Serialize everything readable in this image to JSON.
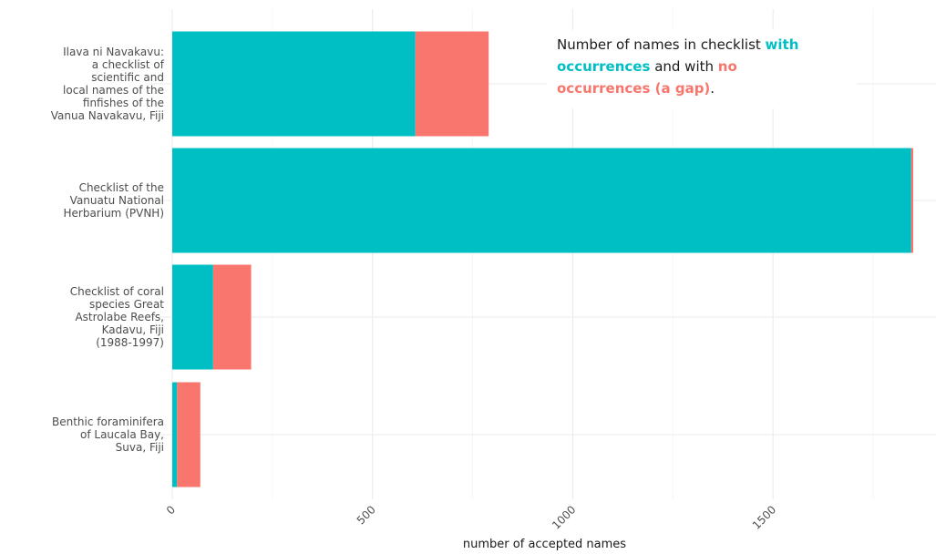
{
  "chart_data": {
    "type": "bar",
    "orientation": "horizontal",
    "stacked": true,
    "categories": [
      [
        "Ilava ni Navakavu:",
        "a checklist of",
        "scientific and",
        "local names of the",
        "finfishes of the",
        "Vanua Navakavu, Fiji"
      ],
      [
        "Checklist of the",
        "Vanuatu National",
        "Herbarium (PVNH)"
      ],
      [
        "Checklist of coral",
        "species Great",
        "Astrolabe Reefs,",
        "Kadavu, Fiji",
        "(1988-1997)"
      ],
      [
        "Benthic foraminifera",
        "of Laucala Bay,",
        "Suva, Fiji"
      ]
    ],
    "series": [
      {
        "values": [
          607,
          1845,
          102,
          12
        ],
        "color": "#00BFC4"
      },
      {
        "values": [
          183,
          5,
          95,
          58
        ],
        "color": "#F8766D"
      }
    ],
    "xlabel": "number of accepted names",
    "xlim": [
      0,
      1850
    ],
    "xticks": [
      0,
      500,
      1000,
      1500
    ],
    "xtick_labels": [
      "0",
      "500",
      "1000",
      "1500"
    ],
    "grid": true,
    "annotation": {
      "parts": [
        {
          "text": "Number of names in checklist ",
          "color": "#1a1a1a",
          "bold": false,
          "line": 0
        },
        {
          "text": "with",
          "color": "#00BFC4",
          "bold": true,
          "line": 0
        },
        {
          "text": "occurrences",
          "color": "#00BFC4",
          "bold": true,
          "line": 1
        },
        {
          "text": " and with ",
          "color": "#1a1a1a",
          "bold": false,
          "line": 1
        },
        {
          "text": "no",
          "color": "#F8766D",
          "bold": true,
          "line": 1
        },
        {
          "text": "occurrences (a gap)",
          "color": "#F8766D",
          "bold": true,
          "line": 2
        },
        {
          "text": ".",
          "color": "#1a1a1a",
          "bold": false,
          "line": 2
        }
      ]
    }
  }
}
